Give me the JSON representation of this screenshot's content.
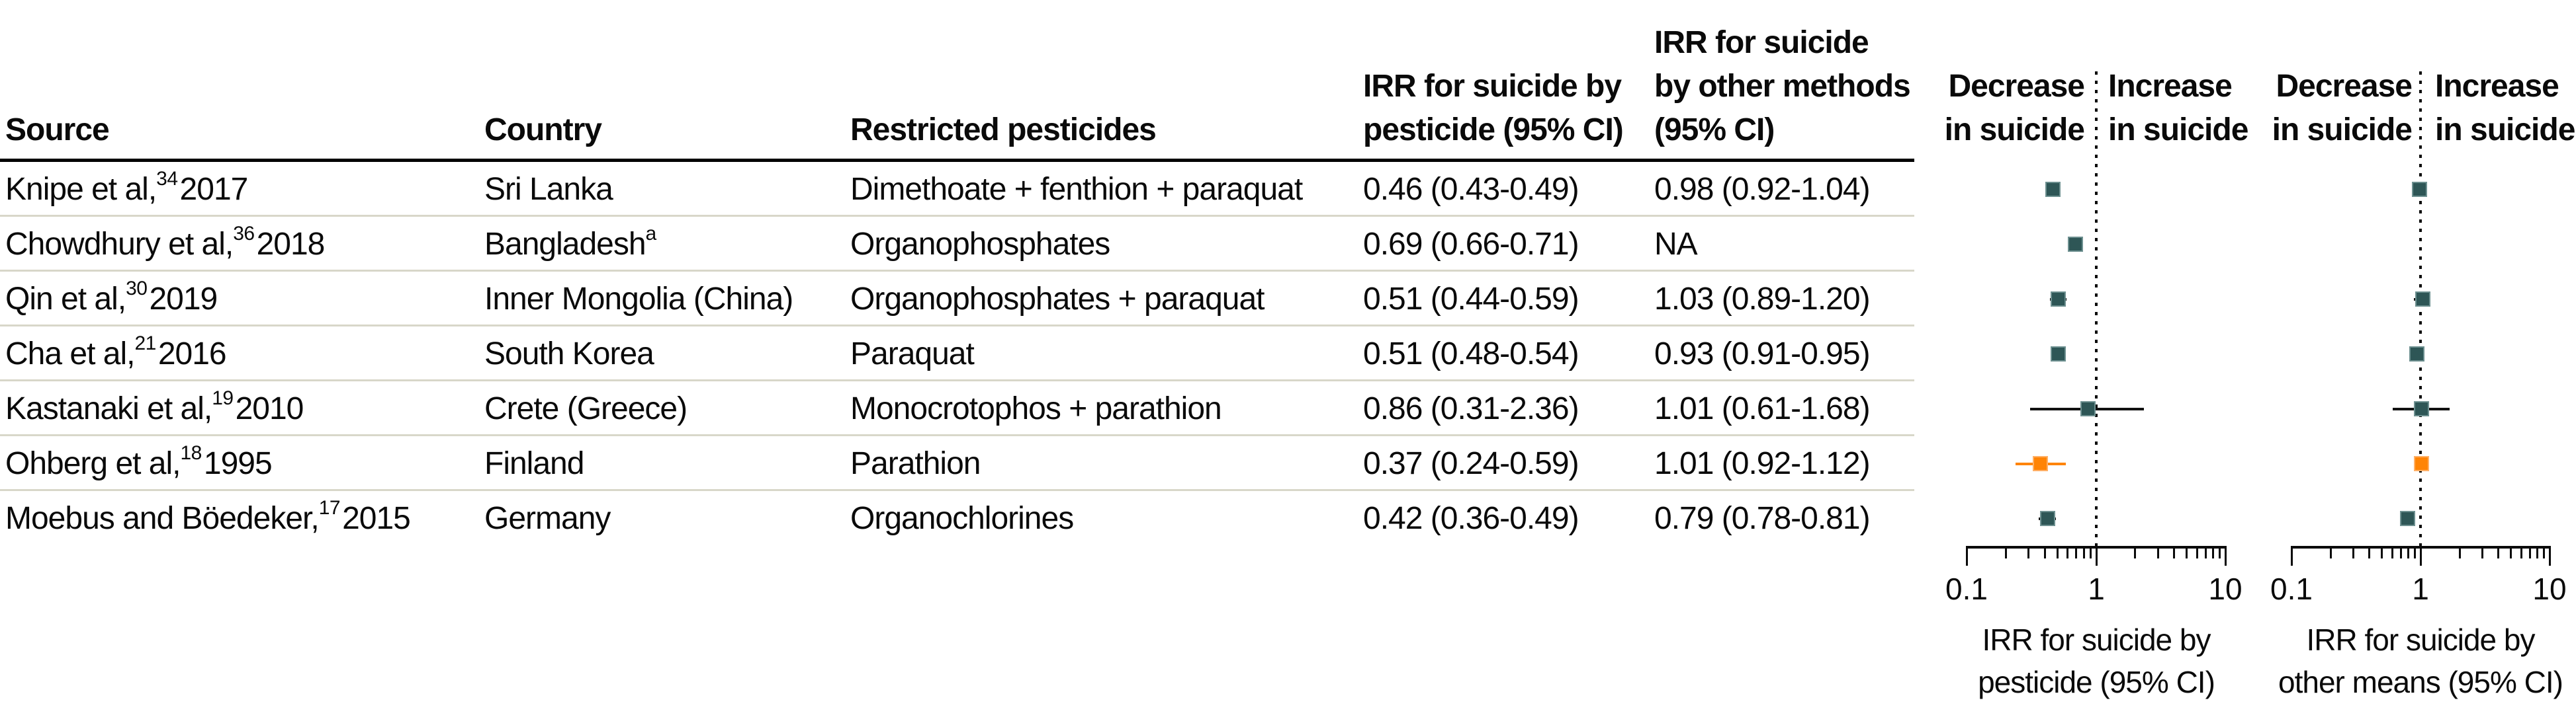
{
  "colors": {
    "marker": "#2e5656",
    "marker_border": "#6d9090",
    "highlight": "#ff8405",
    "highlight_border": "#ffb066",
    "whisker": "#111111",
    "separator": "#d8d7c9",
    "rule": "#000000",
    "text": "#0a0a0a"
  },
  "table": {
    "headers": {
      "source": "Source",
      "country": "Country",
      "pesticides": "Restricted pesticides",
      "irr1_line1": "IRR for suicide by",
      "irr1_line2": "pesticide (95% CI)",
      "irr2_line1": "IRR for suicide",
      "irr2_line2": "by other methods",
      "irr2_line3": "(95% CI)"
    },
    "rows": [
      {
        "source_pre": "Knipe et al,",
        "source_sup": "34",
        "source_post": " 2017",
        "country": "Sri Lanka",
        "country_sup": "",
        "pesticides": "Dimethoate + fenthion + paraquat",
        "irr_pesticide": "0.46 (0.43-0.49)",
        "irr_other": "0.98 (0.92-1.04)"
      },
      {
        "source_pre": "Chowdhury et al,",
        "source_sup": "36",
        "source_post": " 2018",
        "country": "Bangladesh",
        "country_sup": "a",
        "pesticides": "Organophosphates",
        "irr_pesticide": "0.69 (0.66-0.71)",
        "irr_other": "NA"
      },
      {
        "source_pre": "Qin et al,",
        "source_sup": "30",
        "source_post": " 2019",
        "country": "Inner Mongolia (China)",
        "country_sup": "",
        "pesticides": "Organophosphates + paraquat",
        "irr_pesticide": "0.51 (0.44-0.59)",
        "irr_other": "1.03 (0.89-1.20)"
      },
      {
        "source_pre": "Cha et al,",
        "source_sup": "21",
        "source_post": " 2016",
        "country": "South Korea",
        "country_sup": "",
        "pesticides": "Paraquat",
        "irr_pesticide": "0.51 (0.48-0.54)",
        "irr_other": "0.93 (0.91-0.95)"
      },
      {
        "source_pre": "Kastanaki et al,",
        "source_sup": "19",
        "source_post": " 2010",
        "country": "Crete (Greece)",
        "country_sup": "",
        "pesticides": "Monocrotophos + parathion",
        "irr_pesticide": "0.86 (0.31-2.36)",
        "irr_other": "1.01 (0.61-1.68)"
      },
      {
        "source_pre": "Ohberg et al,",
        "source_sup": "18",
        "source_post": " 1995",
        "country": "Finland",
        "country_sup": "",
        "pesticides": "Parathion",
        "irr_pesticide": "0.37 (0.24-0.59)",
        "irr_other": "1.01 (0.92-1.12)"
      },
      {
        "source_pre": "Moebus and Böedeker,",
        "source_sup": "17",
        "source_post": " 2015",
        "country": "Germany",
        "country_sup": "",
        "pesticides": "Organochlorines",
        "irr_pesticide": "0.42 (0.36-0.49)",
        "irr_other": "0.79 (0.78-0.81)"
      }
    ]
  },
  "chart_data": [
    {
      "type": "scatter",
      "subtype": "forest",
      "title": "IRR for suicide by pesticide (95% CI)",
      "x_scale": "log",
      "xlim": [
        0.1,
        10
      ],
      "ticks": [
        0.1,
        0.2,
        0.3,
        0.4,
        0.5,
        0.6,
        0.7,
        0.8,
        0.9,
        1,
        2,
        3,
        4,
        5,
        6,
        7,
        8,
        9,
        10
      ],
      "xticks": [
        0.1,
        1,
        10
      ],
      "xtick_labels": [
        "0.1",
        "1",
        "10"
      ],
      "reference_line": 1,
      "left_label_line1": "Decrease",
      "left_label_line2": "in suicide",
      "right_label_line1": "Increase",
      "right_label_line2": "in suicide",
      "xlabel_line1": "IRR for suicide by",
      "xlabel_line2": "pesticide (95% CI)",
      "points": [
        {
          "study": "Knipe et al, 2017",
          "est": 0.46,
          "lo": 0.43,
          "hi": 0.49,
          "highlight": false
        },
        {
          "study": "Chowdhury et al, 2018",
          "est": 0.69,
          "lo": 0.66,
          "hi": 0.71,
          "highlight": false
        },
        {
          "study": "Qin et al, 2019",
          "est": 0.51,
          "lo": 0.44,
          "hi": 0.59,
          "highlight": false
        },
        {
          "study": "Cha et al, 2016",
          "est": 0.51,
          "lo": 0.48,
          "hi": 0.54,
          "highlight": false
        },
        {
          "study": "Kastanaki et al, 2010",
          "est": 0.86,
          "lo": 0.31,
          "hi": 2.36,
          "highlight": false
        },
        {
          "study": "Ohberg et al, 1995",
          "est": 0.37,
          "lo": 0.24,
          "hi": 0.59,
          "highlight": true
        },
        {
          "study": "Moebus and Böedeker, 2015",
          "est": 0.42,
          "lo": 0.36,
          "hi": 0.49,
          "highlight": false
        }
      ]
    },
    {
      "type": "scatter",
      "subtype": "forest",
      "title": "IRR for suicide by other means (95% CI)",
      "x_scale": "log",
      "xlim": [
        0.1,
        10
      ],
      "ticks": [
        0.1,
        0.2,
        0.3,
        0.4,
        0.5,
        0.6,
        0.7,
        0.8,
        0.9,
        1,
        2,
        3,
        4,
        5,
        6,
        7,
        8,
        9,
        10
      ],
      "xticks": [
        0.1,
        1,
        10
      ],
      "xtick_labels": [
        "0.1",
        "1",
        "10"
      ],
      "reference_line": 1,
      "left_label_line1": "Decrease",
      "left_label_line2": "in suicide",
      "right_label_line1": "Increase",
      "right_label_line2": "in suicide",
      "xlabel_line1": "IRR for suicide by",
      "xlabel_line2": "other means (95% CI)",
      "points": [
        {
          "study": "Knipe et al, 2017",
          "est": 0.98,
          "lo": 0.92,
          "hi": 1.04,
          "highlight": false
        },
        {
          "study": "Chowdhury et al, 2018",
          "est": null,
          "lo": null,
          "hi": null,
          "highlight": false
        },
        {
          "study": "Qin et al, 2019",
          "est": 1.03,
          "lo": 0.89,
          "hi": 1.2,
          "highlight": false
        },
        {
          "study": "Cha et al, 2016",
          "est": 0.93,
          "lo": 0.91,
          "hi": 0.95,
          "highlight": false
        },
        {
          "study": "Kastanaki et al, 2010",
          "est": 1.01,
          "lo": 0.61,
          "hi": 1.68,
          "highlight": false
        },
        {
          "study": "Ohberg et al, 1995",
          "est": 1.01,
          "lo": 0.92,
          "hi": 1.12,
          "highlight": true
        },
        {
          "study": "Moebus and Böedeker, 2015",
          "est": 0.79,
          "lo": 0.78,
          "hi": 0.81,
          "highlight": false
        }
      ]
    }
  ]
}
